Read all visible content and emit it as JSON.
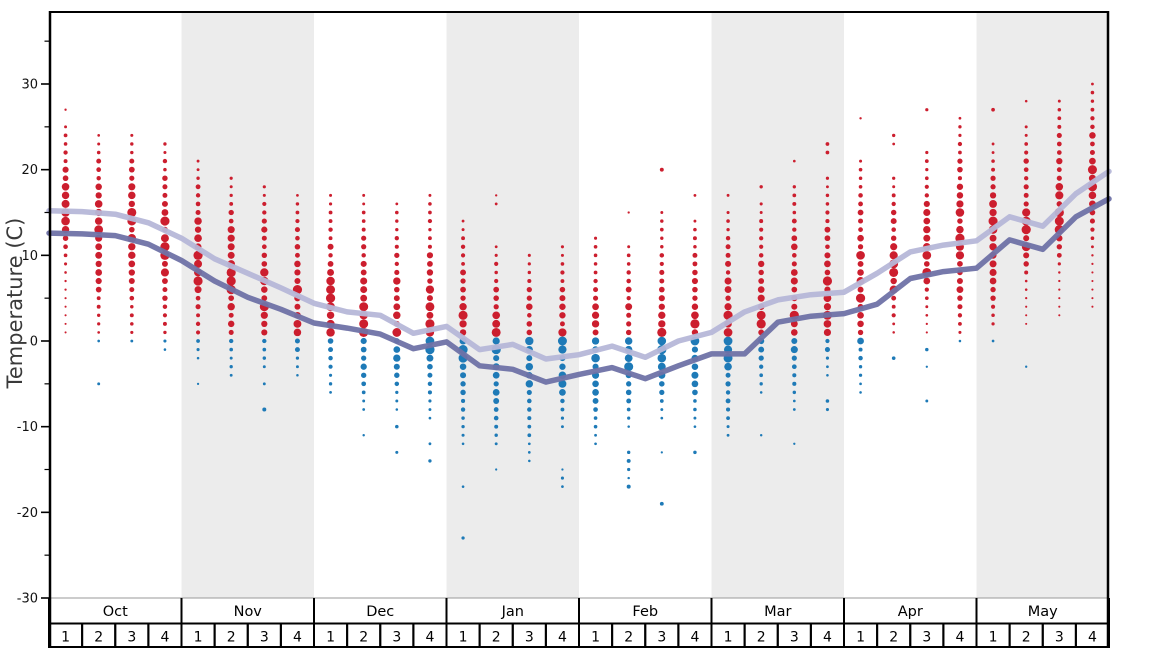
{
  "chart_data": {
    "type": "scatter",
    "ylabel": "Temperature (C)",
    "y_axis": {
      "min": -30,
      "max": 38,
      "major_ticks": [
        30,
        20,
        10,
        0,
        -10,
        -20,
        -30
      ],
      "minor_ticks": [
        35,
        25,
        15,
        5,
        -5,
        -15,
        -25
      ],
      "grid": false
    },
    "x_axis": {
      "months": [
        "Oct",
        "Nov",
        "Dec",
        "Jan",
        "Feb",
        "Mar",
        "Apr",
        "May"
      ],
      "week_labels": [
        "1",
        "2",
        "3",
        "4"
      ],
      "shaded_month_indexes": [
        1,
        3,
        5,
        7
      ]
    },
    "legend_position": "none",
    "lines": {
      "x": "week_boundary_index_0_to_32",
      "upper": {
        "name": "upper-average-line",
        "color": "#b6b7d8",
        "values": [
          15.2,
          15.1,
          14.8,
          13.8,
          12.0,
          9.6,
          7.9,
          6.2,
          4.4,
          3.4,
          3.0,
          0.9,
          1.7,
          -1.0,
          -0.4,
          -2.1,
          -1.6,
          -0.6,
          -1.9,
          0.0,
          1.0,
          3.4,
          4.8,
          5.4,
          5.7,
          7.9,
          10.4,
          11.2,
          11.7,
          14.5,
          13.4,
          17.2,
          19.8
        ]
      },
      "lower": {
        "name": "lower-average-line",
        "color": "#6f72a6",
        "values": [
          12.6,
          12.5,
          12.3,
          11.3,
          9.4,
          7.0,
          5.1,
          3.7,
          2.1,
          1.5,
          0.8,
          -0.9,
          -0.1,
          -2.9,
          -3.3,
          -4.8,
          -3.9,
          -3.1,
          -4.4,
          -2.9,
          -1.5,
          -1.5,
          2.2,
          2.9,
          3.2,
          4.3,
          7.3,
          8.1,
          8.5,
          11.8,
          10.7,
          14.5,
          16.6
        ]
      }
    },
    "dot_columns": [
      {
        "month": "Oct",
        "week": "1",
        "red_min": 1,
        "red_max": 25,
        "red_outliers": [
          27
        ],
        "blue_stack_min": null,
        "blue_outliers": []
      },
      {
        "month": "Oct",
        "week": "2",
        "red_min": 1,
        "red_max": 24,
        "red_outliers": [],
        "blue_stack_min": 0,
        "blue_outliers": [
          -5
        ]
      },
      {
        "month": "Oct",
        "week": "3",
        "red_min": 1,
        "red_max": 24,
        "red_outliers": [],
        "blue_stack_min": 0,
        "blue_outliers": []
      },
      {
        "month": "Oct",
        "week": "4",
        "red_min": 1,
        "red_max": 23,
        "red_outliers": [],
        "blue_stack_min": -1,
        "blue_outliers": []
      },
      {
        "month": "Nov",
        "week": "1",
        "red_min": 1,
        "red_max": 21,
        "red_outliers": [],
        "blue_stack_min": -2,
        "blue_outliers": [
          -5
        ]
      },
      {
        "month": "Nov",
        "week": "2",
        "red_min": 1,
        "red_max": 19,
        "red_outliers": [],
        "blue_stack_min": -4,
        "blue_outliers": []
      },
      {
        "month": "Nov",
        "week": "3",
        "red_min": 1,
        "red_max": 18,
        "red_outliers": [],
        "blue_stack_min": -3,
        "blue_outliers": [
          -5,
          -8
        ]
      },
      {
        "month": "Nov",
        "week": "4",
        "red_min": 1,
        "red_max": 17,
        "red_outliers": [],
        "blue_stack_min": -4,
        "blue_outliers": []
      },
      {
        "month": "Dec",
        "week": "1",
        "red_min": 1,
        "red_max": 17,
        "red_outliers": [],
        "blue_stack_min": -6,
        "blue_outliers": []
      },
      {
        "month": "Dec",
        "week": "2",
        "red_min": 1,
        "red_max": 17,
        "red_outliers": [],
        "blue_stack_min": -8,
        "blue_outliers": [
          -11
        ]
      },
      {
        "month": "Dec",
        "week": "3",
        "red_min": 1,
        "red_max": 16,
        "red_outliers": [],
        "blue_stack_min": -8,
        "blue_outliers": [
          -10,
          -13
        ]
      },
      {
        "month": "Dec",
        "week": "4",
        "red_min": 1,
        "red_max": 17,
        "red_outliers": [],
        "blue_stack_min": -9,
        "blue_outliers": [
          -12,
          -14
        ]
      },
      {
        "month": "Jan",
        "week": "1",
        "red_min": 1,
        "red_max": 14,
        "red_outliers": [],
        "blue_stack_min": -12,
        "blue_outliers": [
          -17,
          -23
        ]
      },
      {
        "month": "Jan",
        "week": "2",
        "red_min": 1,
        "red_max": 11,
        "red_outliers": [
          16,
          17
        ],
        "blue_stack_min": -12,
        "blue_outliers": [
          -15
        ]
      },
      {
        "month": "Jan",
        "week": "3",
        "red_min": 1,
        "red_max": 10,
        "red_outliers": [],
        "blue_stack_min": -13,
        "blue_outliers": [
          -14
        ]
      },
      {
        "month": "Jan",
        "week": "4",
        "red_min": 1,
        "red_max": 11,
        "red_outliers": [],
        "blue_stack_min": -10,
        "blue_outliers": [
          -15,
          -16,
          -17
        ]
      },
      {
        "month": "Feb",
        "week": "1",
        "red_min": 1,
        "red_max": 12,
        "red_outliers": [],
        "blue_stack_min": -12,
        "blue_outliers": []
      },
      {
        "month": "Feb",
        "week": "2",
        "red_min": 1,
        "red_max": 11,
        "red_outliers": [
          15
        ],
        "blue_stack_min": -10,
        "blue_outliers": [
          -13,
          -14,
          -15,
          -16,
          -17
        ]
      },
      {
        "month": "Feb",
        "week": "3",
        "red_min": 1,
        "red_max": 15,
        "red_outliers": [
          20
        ],
        "blue_stack_min": -9,
        "blue_outliers": [
          -13,
          -19
        ]
      },
      {
        "month": "Feb",
        "week": "4",
        "red_min": 1,
        "red_max": 14,
        "red_outliers": [
          17
        ],
        "blue_stack_min": -10,
        "blue_outliers": [
          -13
        ]
      },
      {
        "month": "Mar",
        "week": "1",
        "red_min": 1,
        "red_max": 15,
        "red_outliers": [
          17
        ],
        "blue_stack_min": -11,
        "blue_outliers": []
      },
      {
        "month": "Mar",
        "week": "2",
        "red_min": 1,
        "red_max": 16,
        "red_outliers": [
          18
        ],
        "blue_stack_min": -6,
        "blue_outliers": [
          -11
        ]
      },
      {
        "month": "Mar",
        "week": "3",
        "red_min": 1,
        "red_max": 18,
        "red_outliers": [
          21
        ],
        "blue_stack_min": -8,
        "blue_outliers": [
          -12
        ]
      },
      {
        "month": "Mar",
        "week": "4",
        "red_min": 1,
        "red_max": 19,
        "red_outliers": [
          22,
          23
        ],
        "blue_stack_min": -4,
        "blue_outliers": [
          -7,
          -8
        ]
      },
      {
        "month": "Apr",
        "week": "1",
        "red_min": 1,
        "red_max": 21,
        "red_outliers": [
          26
        ],
        "blue_stack_min": -6,
        "blue_outliers": []
      },
      {
        "month": "Apr",
        "week": "2",
        "red_min": 1,
        "red_max": 19,
        "red_outliers": [
          23,
          24
        ],
        "blue_stack_min": null,
        "blue_outliers": [
          -2
        ]
      },
      {
        "month": "Apr",
        "week": "3",
        "red_min": 1,
        "red_max": 22,
        "red_outliers": [
          27
        ],
        "blue_stack_min": null,
        "blue_outliers": [
          -1,
          -3,
          -7
        ]
      },
      {
        "month": "Apr",
        "week": "4",
        "red_min": 1,
        "red_max": 26,
        "red_outliers": [],
        "blue_stack_min": 0,
        "blue_outliers": []
      },
      {
        "month": "May",
        "week": "1",
        "red_min": 2,
        "red_max": 23,
        "red_outliers": [
          27
        ],
        "blue_stack_min": 0,
        "blue_outliers": []
      },
      {
        "month": "May",
        "week": "2",
        "red_min": 2,
        "red_max": 25,
        "red_outliers": [
          28
        ],
        "blue_stack_min": null,
        "blue_outliers": [
          -3
        ]
      },
      {
        "month": "May",
        "week": "3",
        "red_min": 3,
        "red_max": 28,
        "red_outliers": [],
        "blue_stack_min": null,
        "blue_outliers": []
      },
      {
        "month": "May",
        "week": "4",
        "red_min": 4,
        "red_max": 30,
        "red_outliers": [],
        "blue_stack_min": null,
        "blue_outliers": []
      }
    ],
    "colors": {
      "red_dot": "#cc1e2e",
      "blue_dot": "#1e7ab7",
      "upper_line": "#b6b7d8",
      "lower_line": "#6f72a6",
      "month_band": "#ececec",
      "axis": "#000000",
      "baseline_gray": "#9a9a9a",
      "label_text": "#3a3a3a"
    }
  }
}
